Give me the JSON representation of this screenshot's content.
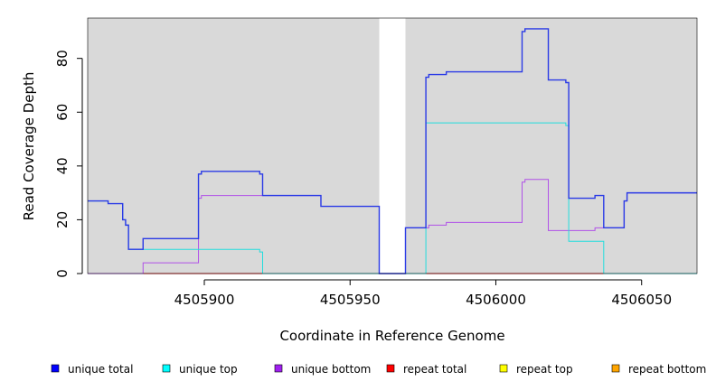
{
  "chart_data": {
    "type": "line",
    "xlabel": "Coordinate in Reference Genome",
    "ylabel": "Read Coverage Depth",
    "xlim": [
      4505860,
      4506069
    ],
    "ylim": [
      0,
      95
    ],
    "x_ticks": [
      4505900,
      4505950,
      4506000,
      4506050
    ],
    "y_ticks": [
      0,
      20,
      40,
      60,
      80
    ],
    "shaded_regions": [
      [
        4505860,
        4505960
      ],
      [
        4505969,
        4506069
      ]
    ],
    "grid": false,
    "legend_position": "bottom",
    "series": [
      {
        "name": "unique total",
        "color": "#0000ff",
        "line_color": "#2a3ae6",
        "points": [
          [
            4505860,
            27
          ],
          [
            4505867,
            27
          ],
          [
            4505867,
            26
          ],
          [
            4505872,
            26
          ],
          [
            4505872,
            20
          ],
          [
            4505873,
            20
          ],
          [
            4505873,
            18
          ],
          [
            4505874,
            18
          ],
          [
            4505874,
            9
          ],
          [
            4505879,
            9
          ],
          [
            4505879,
            13
          ],
          [
            4505898,
            13
          ],
          [
            4505898,
            37
          ],
          [
            4505899,
            37
          ],
          [
            4505899,
            38
          ],
          [
            4505919,
            38
          ],
          [
            4505919,
            37
          ],
          [
            4505920,
            37
          ],
          [
            4505920,
            29
          ],
          [
            4505940,
            29
          ],
          [
            4505940,
            25
          ],
          [
            4505960,
            25
          ],
          [
            4505960,
            0
          ],
          [
            4505969,
            0
          ],
          [
            4505969,
            17
          ],
          [
            4505976,
            17
          ],
          [
            4505976,
            73
          ],
          [
            4505977,
            73
          ],
          [
            4505977,
            74
          ],
          [
            4505983,
            74
          ],
          [
            4505983,
            75
          ],
          [
            4506009,
            75
          ],
          [
            4506009,
            90
          ],
          [
            4506010,
            90
          ],
          [
            4506010,
            91
          ],
          [
            4506018,
            91
          ],
          [
            4506018,
            72
          ],
          [
            4506024,
            72
          ],
          [
            4506024,
            71
          ],
          [
            4506025,
            71
          ],
          [
            4506025,
            28
          ],
          [
            4506034,
            28
          ],
          [
            4506034,
            29
          ],
          [
            4506037,
            29
          ],
          [
            4506037,
            17
          ],
          [
            4506044,
            17
          ],
          [
            4506044,
            27
          ],
          [
            4506045,
            27
          ],
          [
            4506045,
            30
          ],
          [
            4506069,
            30
          ]
        ]
      },
      {
        "name": "unique top",
        "color": "#00ffff",
        "line_color": "#22dddd",
        "points": [
          [
            4505860,
            27
          ],
          [
            4505867,
            27
          ],
          [
            4505867,
            26
          ],
          [
            4505872,
            26
          ],
          [
            4505872,
            20
          ],
          [
            4505873,
            20
          ],
          [
            4505873,
            18
          ],
          [
            4505874,
            18
          ],
          [
            4505874,
            9
          ],
          [
            4505919,
            9
          ],
          [
            4505919,
            8
          ],
          [
            4505920,
            8
          ],
          [
            4505920,
            0
          ],
          [
            4505976,
            0
          ],
          [
            4505976,
            56
          ],
          [
            4506024,
            56
          ],
          [
            4506024,
            55
          ],
          [
            4506025,
            55
          ],
          [
            4506025,
            12
          ],
          [
            4506037,
            12
          ],
          [
            4506037,
            0
          ],
          [
            4506069,
            0
          ]
        ]
      },
      {
        "name": "unique bottom",
        "color": "#a020f0",
        "line_color": "#b050e8",
        "points": [
          [
            4505860,
            0
          ],
          [
            4505879,
            0
          ],
          [
            4505879,
            4
          ],
          [
            4505898,
            4
          ],
          [
            4505898,
            28
          ],
          [
            4505899,
            28
          ],
          [
            4505899,
            29
          ],
          [
            4505920,
            29
          ],
          [
            4505940,
            29
          ],
          [
            4505940,
            25
          ],
          [
            4505960,
            25
          ],
          [
            4505960,
            0
          ],
          [
            4505969,
            0
          ],
          [
            4505969,
            17
          ],
          [
            4505976,
            17
          ],
          [
            4505976,
            17
          ],
          [
            4505977,
            17
          ],
          [
            4505977,
            18
          ],
          [
            4505983,
            18
          ],
          [
            4505983,
            19
          ],
          [
            4506009,
            19
          ],
          [
            4506009,
            34
          ],
          [
            4506010,
            34
          ],
          [
            4506010,
            35
          ],
          [
            4506018,
            35
          ],
          [
            4506018,
            16
          ],
          [
            4506034,
            16
          ],
          [
            4506034,
            17
          ],
          [
            4506037,
            17
          ],
          [
            4506044,
            17
          ],
          [
            4506044,
            27
          ],
          [
            4506045,
            27
          ],
          [
            4506045,
            30
          ],
          [
            4506069,
            30
          ]
        ]
      },
      {
        "name": "repeat total",
        "color": "#ff0000",
        "line_color": "#ff0000",
        "points": [
          [
            4505860,
            0
          ],
          [
            4506069,
            0
          ]
        ]
      },
      {
        "name": "repeat top",
        "color": "#ffff00",
        "line_color": "#ffff00",
        "points": [
          [
            4505860,
            0
          ],
          [
            4506069,
            0
          ]
        ]
      },
      {
        "name": "repeat bottom",
        "color": "#ffa500",
        "line_color": "#ff9900",
        "points": [
          [
            4505860,
            0
          ],
          [
            4506069,
            0
          ]
        ]
      }
    ]
  }
}
